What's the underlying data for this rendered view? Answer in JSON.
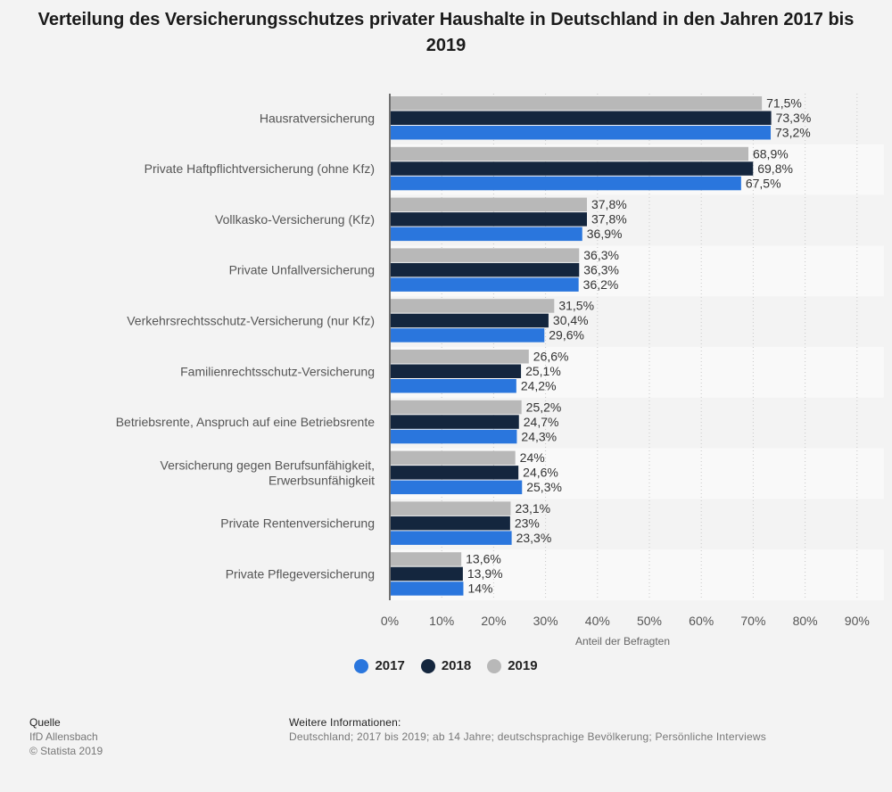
{
  "title": "Verteilung des Versicherungsschutzes privater Haushalte in Deutschland in den Jahren 2017 bis 2019",
  "chart_data": {
    "type": "bar",
    "orientation": "horizontal",
    "categories": [
      [
        "Hausratversicherung"
      ],
      [
        "Private Haftpflichtversicherung (ohne Kfz)"
      ],
      [
        "Vollkasko-Versicherung (Kfz)"
      ],
      [
        "Private Unfallversicherung"
      ],
      [
        "Verkehrsrechtsschutz-Versicherung (nur Kfz)"
      ],
      [
        "Familienrechtsschutz-Versicherung"
      ],
      [
        "Betriebsrente, Anspruch auf eine Betriebsrente"
      ],
      [
        "Versicherung gegen Berufsunfähigkeit,",
        "Erwerbsunfähigkeit"
      ],
      [
        "Private Rentenversicherung"
      ],
      [
        "Private Pflegeversicherung"
      ]
    ],
    "series": [
      {
        "name": "2019",
        "color": "#b8b8b8",
        "values": [
          71.5,
          68.9,
          37.8,
          36.3,
          31.5,
          26.6,
          25.2,
          24,
          23.1,
          13.6
        ],
        "labels": [
          "71,5%",
          "68,9%",
          "37,8%",
          "36,3%",
          "31,5%",
          "26,6%",
          "25,2%",
          "24%",
          "23,1%",
          "13,6%"
        ]
      },
      {
        "name": "2018",
        "color": "#14263e",
        "values": [
          73.3,
          69.8,
          37.8,
          36.3,
          30.4,
          25.1,
          24.7,
          24.6,
          23,
          13.9
        ],
        "labels": [
          "73,3%",
          "69,8%",
          "37,8%",
          "36,3%",
          "30,4%",
          "25,1%",
          "24,7%",
          "24,6%",
          "23%",
          "13,9%"
        ]
      },
      {
        "name": "2017",
        "color": "#2a76dd",
        "values": [
          73.2,
          67.5,
          36.9,
          36.2,
          29.6,
          24.2,
          24.3,
          25.3,
          23.3,
          14
        ],
        "labels": [
          "73,2%",
          "67,5%",
          "36,9%",
          "36,2%",
          "29,6%",
          "24,2%",
          "24,3%",
          "25,3%",
          "23,3%",
          "14%"
        ]
      }
    ],
    "xlim": [
      0,
      90
    ],
    "xticks": [
      0,
      10,
      20,
      30,
      40,
      50,
      60,
      70,
      80,
      90
    ],
    "xtick_labels": [
      "0%",
      "10%",
      "20%",
      "30%",
      "40%",
      "50%",
      "60%",
      "70%",
      "80%",
      "90%"
    ],
    "xlabel": "Anteil der Befragten",
    "grid": "vertical dashed",
    "legend": {
      "position": "bottom-center",
      "entries": [
        "2017",
        "2018",
        "2019"
      ]
    }
  },
  "legend_labels": {
    "y2017": "2017",
    "y2018": "2018",
    "y2019": "2019"
  },
  "colors": {
    "y2017": "#2a76dd",
    "y2018": "#14263e",
    "y2019": "#b8b8b8"
  },
  "source": {
    "heading": "Quelle",
    "line1": "IfD Allensbach",
    "line2": "© Statista 2019"
  },
  "info": {
    "heading": "Weitere Informationen:",
    "text": "Deutschland; 2017 bis 2019; ab 14 Jahre; deutschsprachige Bevölkerung; Persönliche Interviews"
  }
}
